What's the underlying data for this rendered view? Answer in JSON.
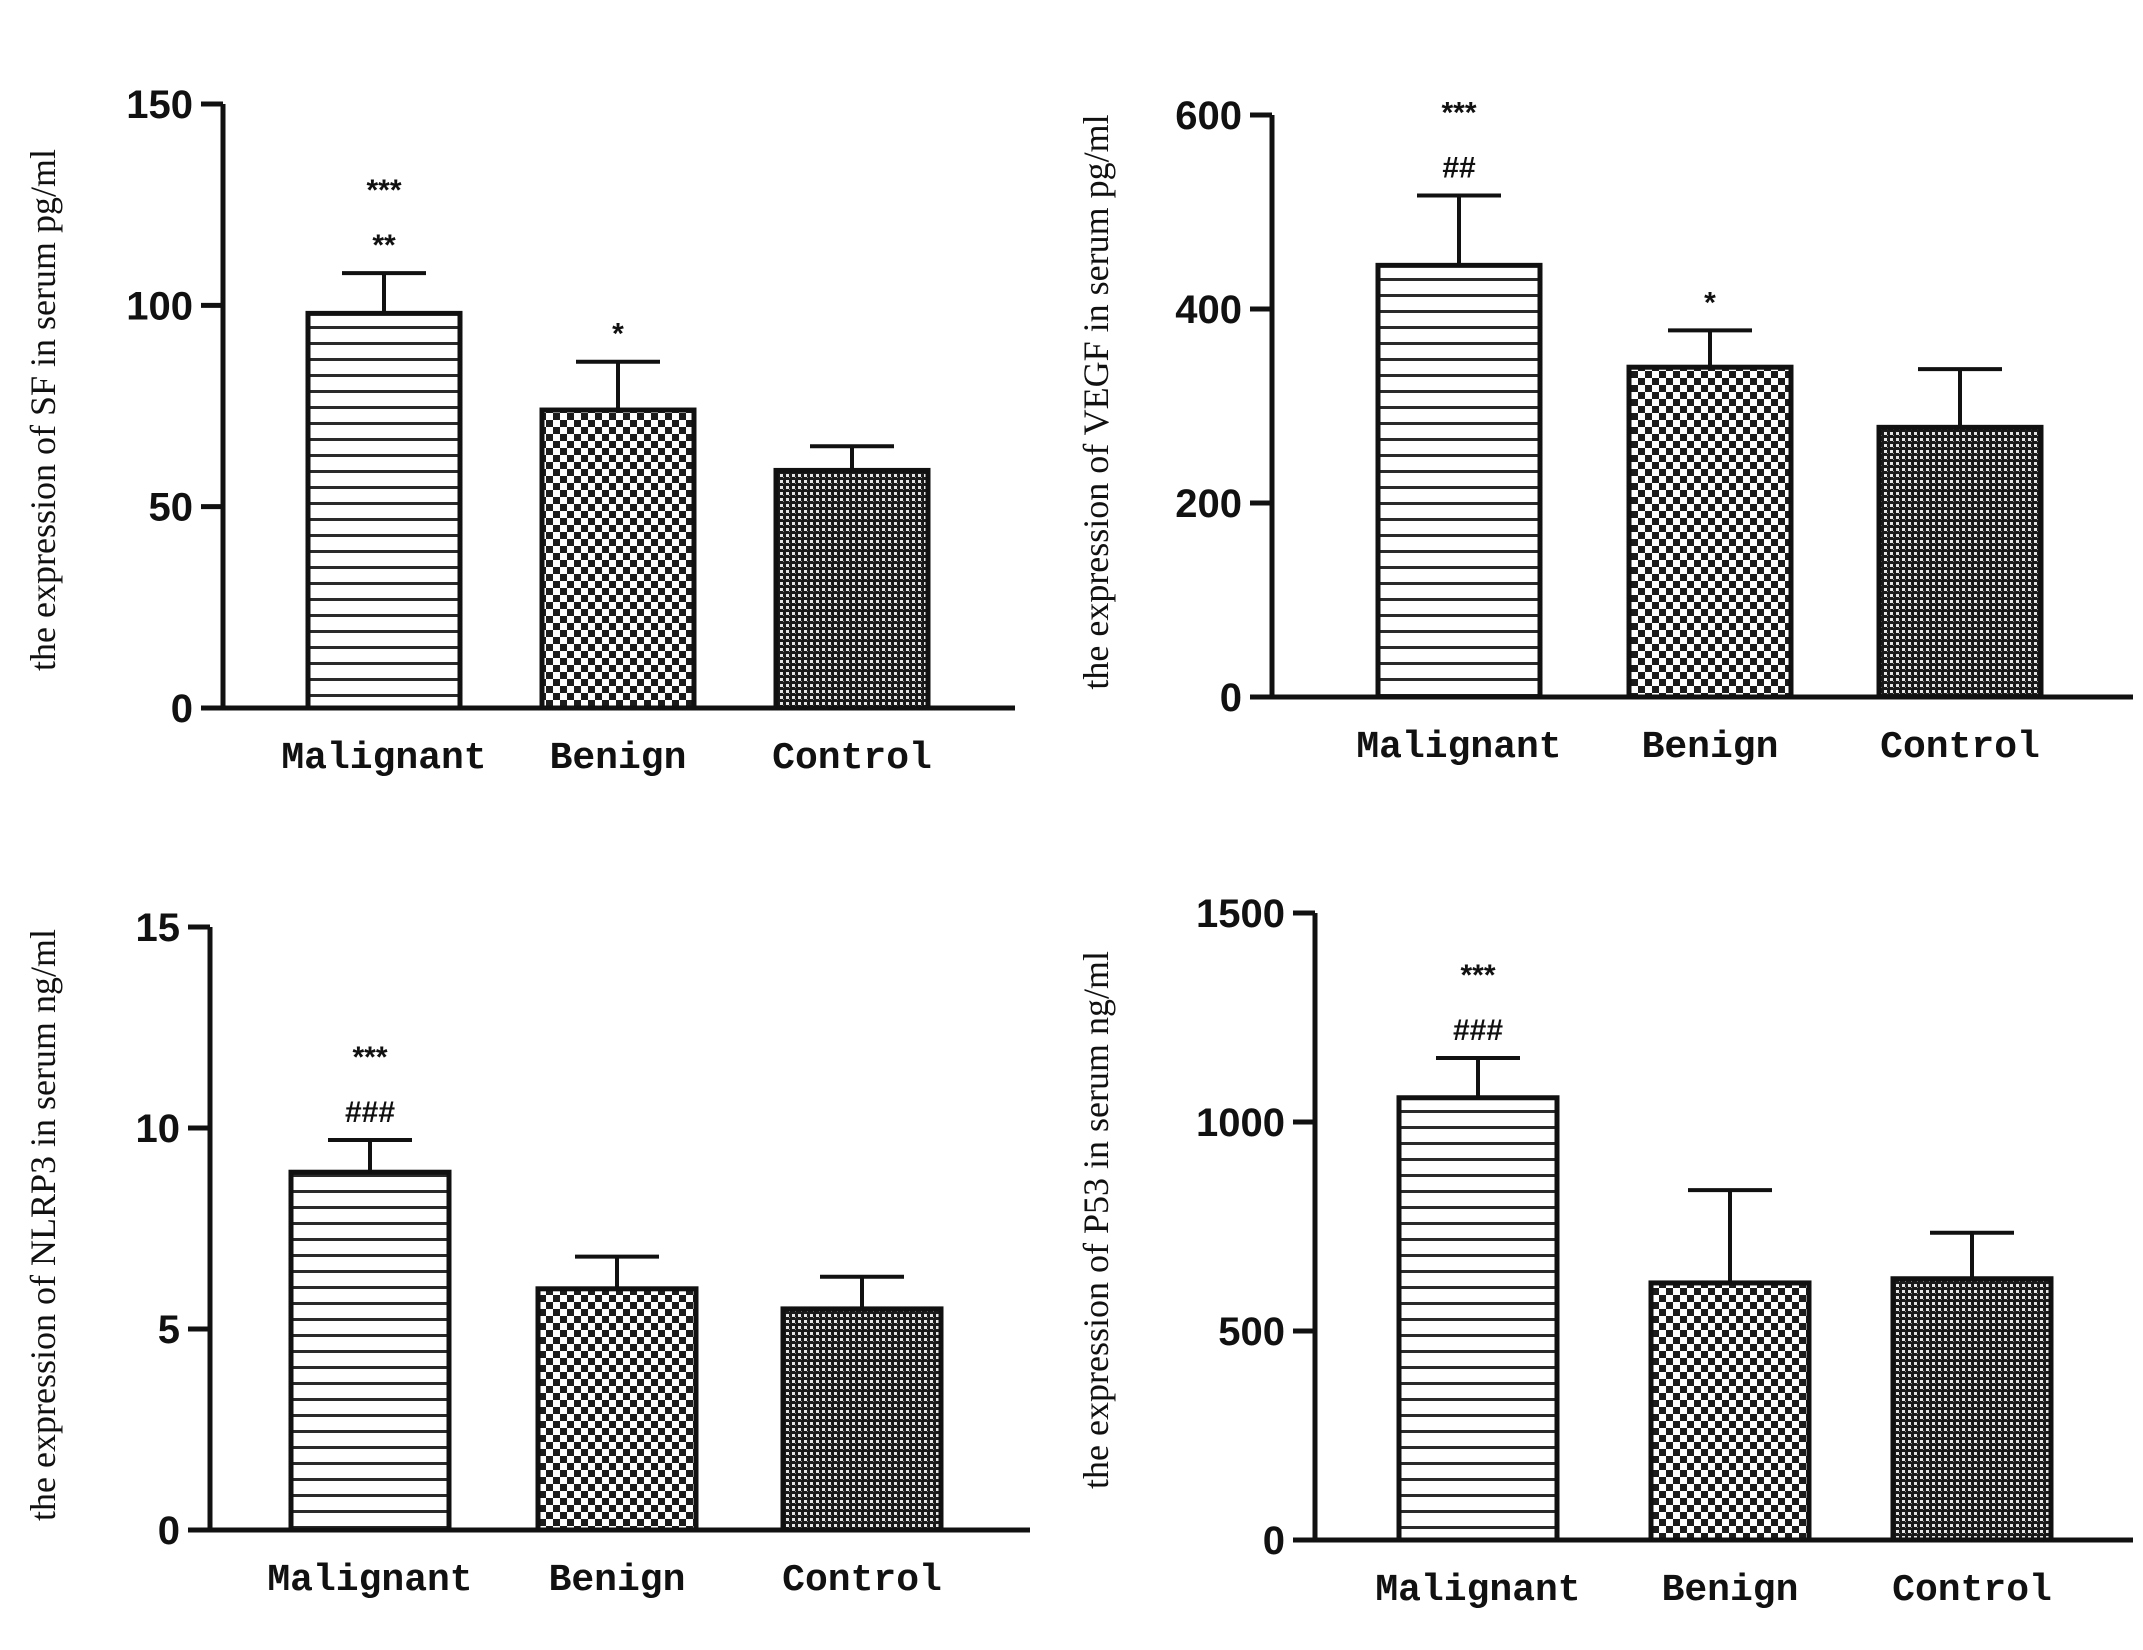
{
  "chart_data": [
    {
      "type": "bar",
      "categories": [
        "Malignant",
        "Benign",
        "Control"
      ],
      "values": [
        98,
        74,
        59
      ],
      "errors": [
        10,
        12,
        6
      ],
      "ylabel": "the expression of SF in serum pg/ml",
      "ylim": [
        0,
        150
      ],
      "yticks": [
        0,
        50,
        100,
        150
      ],
      "annotations": [
        [
          "***",
          "**"
        ],
        [
          "*"
        ],
        []
      ],
      "patterns": [
        "hstripe",
        "checker",
        "dense"
      ],
      "grid": false,
      "legend": "none"
    },
    {
      "type": "bar",
      "categories": [
        "Malignant",
        "Benign",
        "Control"
      ],
      "values": [
        445,
        340,
        278
      ],
      "errors": [
        72,
        38,
        60
      ],
      "ylabel": "the expression of VEGF in serum pg/ml",
      "ylim": [
        0,
        600
      ],
      "yticks": [
        0,
        200,
        400,
        600
      ],
      "annotations": [
        [
          "***",
          "##"
        ],
        [
          "*"
        ],
        []
      ],
      "patterns": [
        "hstripe",
        "checker",
        "dense"
      ],
      "grid": false,
      "legend": "none"
    },
    {
      "type": "bar",
      "categories": [
        "Malignant",
        "Benign",
        "Control"
      ],
      "values": [
        8.9,
        6.0,
        5.5
      ],
      "errors": [
        0.8,
        0.8,
        0.8
      ],
      "ylabel": "the expression of NLRP3 in serum ng/ml",
      "ylim": [
        0,
        15
      ],
      "yticks": [
        0,
        5,
        10,
        15
      ],
      "annotations": [
        [
          "***",
          "###"
        ],
        [],
        []
      ],
      "patterns": [
        "hstripe",
        "checker",
        "dense"
      ],
      "grid": false,
      "legend": "none"
    },
    {
      "type": "bar",
      "categories": [
        "Malignant",
        "Benign",
        "Control"
      ],
      "values": [
        1058,
        615,
        625
      ],
      "errors": [
        95,
        222,
        110
      ],
      "ylabel": "the expression of P53 in serum ng/ml",
      "ylim": [
        0,
        1500
      ],
      "yticks": [
        0,
        500,
        1000,
        1500
      ],
      "annotations": [
        [
          "***",
          "###"
        ],
        [],
        []
      ],
      "patterns": [
        "hstripe",
        "checker",
        "dense"
      ],
      "grid": false,
      "legend": "none"
    }
  ]
}
